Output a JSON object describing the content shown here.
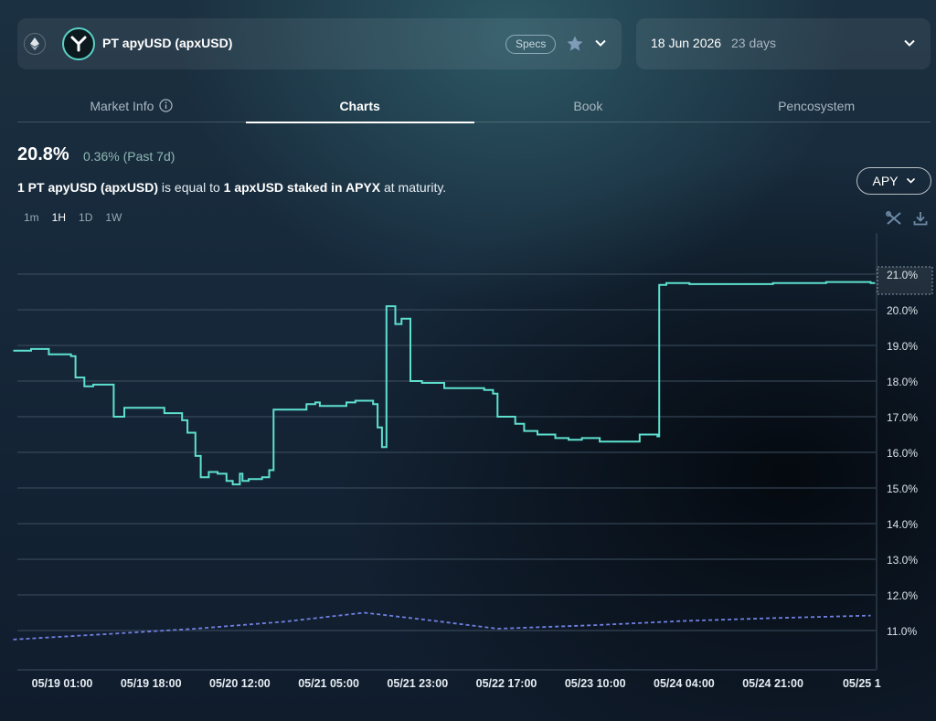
{
  "header": {
    "market_name": "PT apyUSD (apxUSD)",
    "specs_label": "Specs",
    "chain_icon": "ethereum-icon",
    "favorite_icon": "star-icon",
    "expiry_date": "18 Jun 2026",
    "expiry_days": "23 days"
  },
  "tabs": [
    {
      "label": "Market Info"
    },
    {
      "label": "Charts"
    },
    {
      "label": "Book"
    },
    {
      "label": "Pencosystem"
    }
  ],
  "summary": {
    "apy_value": "20.8%",
    "apy_change": "0.36% (Past 7d)",
    "desc_part1": "1 PT apyUSD (apxUSD)",
    "desc_part2": " is equal to ",
    "desc_part3": "1 apxUSD staked in APYX",
    "desc_part4": " at maturity."
  },
  "metric_selector": {
    "value": "APY"
  },
  "intervals": [
    "1m",
    "1H",
    "1D",
    "1W"
  ],
  "active_interval": "1H",
  "colors": {
    "implied_line": "#5ee0cf",
    "underlying_line": "#6f7fe0",
    "grid": "#3e4f60"
  },
  "chart_data": {
    "type": "line",
    "y_ticks": [
      "21.0%",
      "20.0%",
      "19.0%",
      "18.0%",
      "17.0%",
      "16.0%",
      "15.0%",
      "14.0%",
      "13.0%",
      "12.0%",
      "11.0%"
    ],
    "ylim": [
      10.7,
      21.0
    ],
    "x_ticks": [
      "05/19 01:00",
      "05/19 18:00",
      "05/20 12:00",
      "05/21 05:00",
      "05/21 23:00",
      "05/22 17:00",
      "05/23 10:00",
      "05/24 04:00",
      "05/24 21:00",
      "05/25 1"
    ],
    "x_index_range": [
      -0.55,
      9.15
    ],
    "series": [
      {
        "style": "solid",
        "points": [
          [
            -0.55,
            18.85
          ],
          [
            -0.35,
            18.85
          ],
          [
            -0.35,
            18.9
          ],
          [
            -0.15,
            18.9
          ],
          [
            -0.15,
            18.75
          ],
          [
            0.1,
            18.75
          ],
          [
            0.1,
            18.7
          ],
          [
            0.15,
            18.7
          ],
          [
            0.15,
            18.1
          ],
          [
            0.25,
            18.1
          ],
          [
            0.25,
            17.85
          ],
          [
            0.35,
            17.85
          ],
          [
            0.35,
            17.9
          ],
          [
            0.58,
            17.9
          ],
          [
            0.58,
            17.0
          ],
          [
            0.7,
            17.0
          ],
          [
            0.7,
            17.25
          ],
          [
            1.15,
            17.25
          ],
          [
            1.15,
            17.1
          ],
          [
            1.35,
            17.1
          ],
          [
            1.35,
            16.9
          ],
          [
            1.41,
            16.9
          ],
          [
            1.41,
            16.55
          ],
          [
            1.5,
            16.55
          ],
          [
            1.5,
            15.9
          ],
          [
            1.56,
            15.9
          ],
          [
            1.56,
            15.3
          ],
          [
            1.65,
            15.3
          ],
          [
            1.65,
            15.45
          ],
          [
            1.75,
            15.45
          ],
          [
            1.75,
            15.4
          ],
          [
            1.85,
            15.4
          ],
          [
            1.85,
            15.2
          ],
          [
            1.92,
            15.2
          ],
          [
            1.92,
            15.1
          ],
          [
            2.0,
            15.1
          ],
          [
            2.0,
            15.4
          ],
          [
            2.03,
            15.4
          ],
          [
            2.03,
            15.2
          ],
          [
            2.1,
            15.2
          ],
          [
            2.1,
            15.25
          ],
          [
            2.25,
            15.25
          ],
          [
            2.25,
            15.3
          ],
          [
            2.33,
            15.3
          ],
          [
            2.33,
            15.5
          ],
          [
            2.38,
            15.5
          ],
          [
            2.38,
            17.2
          ],
          [
            2.75,
            17.2
          ],
          [
            2.75,
            17.35
          ],
          [
            2.85,
            17.35
          ],
          [
            2.85,
            17.4
          ],
          [
            2.9,
            17.4
          ],
          [
            2.9,
            17.3
          ],
          [
            3.2,
            17.3
          ],
          [
            3.2,
            17.4
          ],
          [
            3.3,
            17.4
          ],
          [
            3.3,
            17.45
          ],
          [
            3.5,
            17.45
          ],
          [
            3.5,
            17.35
          ],
          [
            3.55,
            17.35
          ],
          [
            3.55,
            16.7
          ],
          [
            3.6,
            16.7
          ],
          [
            3.6,
            16.15
          ],
          [
            3.65,
            16.15
          ],
          [
            3.65,
            20.1
          ],
          [
            3.75,
            20.1
          ],
          [
            3.75,
            19.6
          ],
          [
            3.82,
            19.6
          ],
          [
            3.82,
            19.75
          ],
          [
            3.92,
            19.75
          ],
          [
            3.92,
            18.0
          ],
          [
            4.05,
            18.0
          ],
          [
            4.05,
            17.95
          ],
          [
            4.3,
            17.95
          ],
          [
            4.3,
            17.8
          ],
          [
            4.75,
            17.8
          ],
          [
            4.75,
            17.75
          ],
          [
            4.85,
            17.75
          ],
          [
            4.85,
            17.65
          ],
          [
            4.9,
            17.65
          ],
          [
            4.9,
            17.0
          ],
          [
            5.1,
            17.0
          ],
          [
            5.1,
            16.8
          ],
          [
            5.2,
            16.8
          ],
          [
            5.2,
            16.6
          ],
          [
            5.35,
            16.6
          ],
          [
            5.35,
            16.5
          ],
          [
            5.55,
            16.5
          ],
          [
            5.55,
            16.4
          ],
          [
            5.7,
            16.4
          ],
          [
            5.7,
            16.35
          ],
          [
            5.85,
            16.35
          ],
          [
            5.85,
            16.4
          ],
          [
            6.05,
            16.4
          ],
          [
            6.05,
            16.3
          ],
          [
            6.5,
            16.3
          ],
          [
            6.5,
            16.5
          ],
          [
            6.7,
            16.5
          ],
          [
            6.7,
            16.45
          ],
          [
            6.72,
            16.45
          ],
          [
            6.72,
            20.7
          ],
          [
            6.8,
            20.7
          ],
          [
            6.8,
            20.75
          ],
          [
            7.06,
            20.75
          ],
          [
            7.06,
            20.72
          ],
          [
            8.0,
            20.72
          ],
          [
            8.0,
            20.75
          ],
          [
            8.6,
            20.75
          ],
          [
            8.6,
            20.78
          ],
          [
            9.1,
            20.78
          ],
          [
            9.1,
            20.75
          ],
          [
            9.15,
            20.75
          ]
        ]
      },
      {
        "style": "dashed",
        "points": [
          [
            -0.55,
            10.75
          ],
          [
            0.5,
            10.9
          ],
          [
            1.5,
            11.05
          ],
          [
            2.5,
            11.25
          ],
          [
            3.4,
            11.5
          ],
          [
            4.1,
            11.3
          ],
          [
            4.9,
            11.05
          ],
          [
            6.0,
            11.15
          ],
          [
            7.0,
            11.27
          ],
          [
            8.0,
            11.35
          ],
          [
            9.1,
            11.42
          ]
        ]
      }
    ],
    "current_value_label": "21.0%"
  }
}
